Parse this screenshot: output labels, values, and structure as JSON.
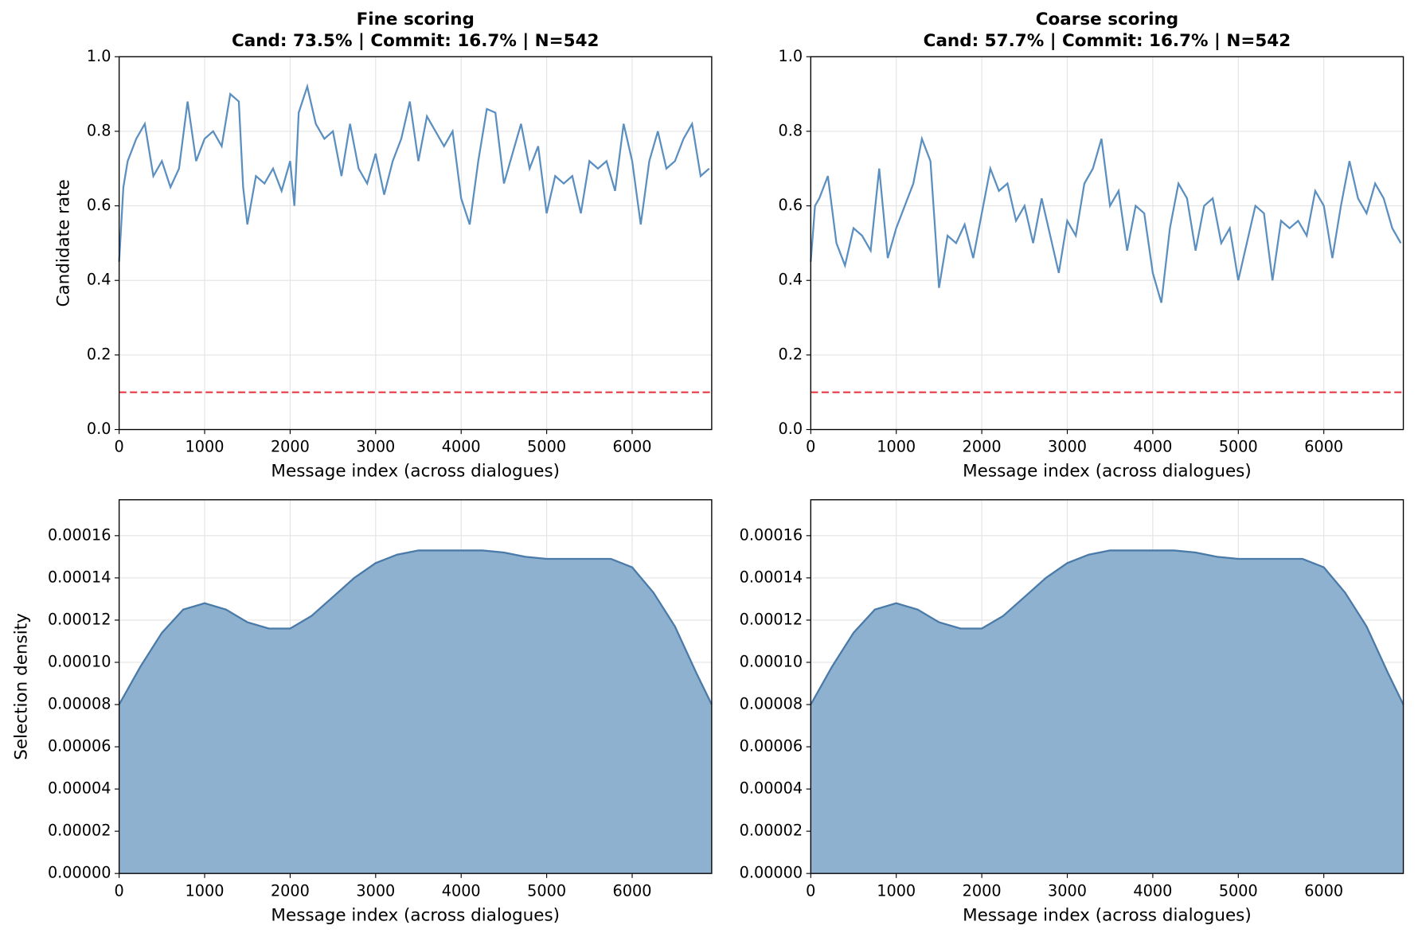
{
  "chart_data": [
    {
      "type": "line",
      "title": "Fine scoring",
      "subtitle": "Cand: 73.5% | Commit: 16.7% | N=542",
      "xlabel": "Message index (across dialogues)",
      "ylabel": "Candidate rate",
      "x": [
        0,
        50,
        100,
        200,
        300,
        400,
        500,
        600,
        700,
        800,
        900,
        1000,
        1100,
        1200,
        1300,
        1400,
        1450,
        1500,
        1600,
        1700,
        1800,
        1900,
        2000,
        2050,
        2100,
        2200,
        2300,
        2400,
        2500,
        2600,
        2700,
        2800,
        2900,
        3000,
        3100,
        3200,
        3300,
        3400,
        3500,
        3600,
        3700,
        3800,
        3900,
        4000,
        4100,
        4200,
        4300,
        4400,
        4500,
        4600,
        4700,
        4800,
        4900,
        5000,
        5100,
        5200,
        5300,
        5400,
        5500,
        5600,
        5700,
        5800,
        5900,
        6000,
        6100,
        6200,
        6300,
        6400,
        6500,
        6600,
        6700,
        6800,
        6900
      ],
      "values": [
        0.45,
        0.65,
        0.72,
        0.78,
        0.82,
        0.68,
        0.72,
        0.65,
        0.7,
        0.88,
        0.72,
        0.78,
        0.8,
        0.76,
        0.9,
        0.88,
        0.65,
        0.55,
        0.68,
        0.66,
        0.7,
        0.64,
        0.72,
        0.6,
        0.85,
        0.92,
        0.82,
        0.78,
        0.8,
        0.68,
        0.82,
        0.7,
        0.66,
        0.74,
        0.63,
        0.72,
        0.78,
        0.88,
        0.72,
        0.84,
        0.8,
        0.76,
        0.8,
        0.62,
        0.55,
        0.72,
        0.86,
        0.85,
        0.66,
        0.74,
        0.82,
        0.7,
        0.76,
        0.58,
        0.68,
        0.66,
        0.68,
        0.58,
        0.72,
        0.7,
        0.72,
        0.64,
        0.82,
        0.72,
        0.55,
        0.72,
        0.8,
        0.7,
        0.72,
        0.78,
        0.82,
        0.68,
        0.7
      ],
      "color": "#5b8fc0",
      "hlines": [
        {
          "value": 0.1,
          "color": "#e8434f",
          "style": "dashed"
        }
      ],
      "xlim": [
        0,
        6930
      ],
      "xticks": [
        0,
        1000,
        2000,
        3000,
        4000,
        5000,
        6000
      ],
      "ylim": [
        0,
        1
      ],
      "yticks": [
        {
          "value": 0,
          "label": "0.0"
        },
        0.2,
        0.4,
        0.6,
        0.8,
        {
          "value": 1,
          "label": "1.0"
        }
      ],
      "grid": true
    },
    {
      "type": "line",
      "title": "Coarse scoring",
      "subtitle": "Cand: 57.7% | Commit: 16.7% | N=542",
      "xlabel": "Message index (across dialogues)",
      "x": [
        0,
        50,
        100,
        200,
        300,
        400,
        500,
        600,
        700,
        800,
        900,
        1000,
        1100,
        1200,
        1300,
        1400,
        1450,
        1500,
        1600,
        1700,
        1800,
        1900,
        2000,
        2100,
        2200,
        2300,
        2400,
        2500,
        2600,
        2700,
        2800,
        2900,
        3000,
        3100,
        3200,
        3300,
        3400,
        3500,
        3600,
        3700,
        3800,
        3900,
        4000,
        4100,
        4200,
        4300,
        4400,
        4500,
        4600,
        4700,
        4800,
        4900,
        5000,
        5100,
        5200,
        5300,
        5400,
        5500,
        5600,
        5700,
        5800,
        5900,
        6000,
        6100,
        6200,
        6300,
        6400,
        6500,
        6600,
        6700,
        6800,
        6900
      ],
      "values": [
        0.45,
        0.6,
        0.62,
        0.68,
        0.5,
        0.44,
        0.54,
        0.52,
        0.48,
        0.7,
        0.46,
        0.54,
        0.6,
        0.66,
        0.78,
        0.72,
        0.55,
        0.38,
        0.52,
        0.5,
        0.55,
        0.46,
        0.58,
        0.7,
        0.64,
        0.66,
        0.56,
        0.6,
        0.5,
        0.62,
        0.52,
        0.42,
        0.56,
        0.52,
        0.66,
        0.7,
        0.78,
        0.6,
        0.64,
        0.48,
        0.6,
        0.58,
        0.42,
        0.34,
        0.54,
        0.66,
        0.62,
        0.48,
        0.6,
        0.62,
        0.5,
        0.54,
        0.4,
        0.5,
        0.6,
        0.58,
        0.4,
        0.56,
        0.54,
        0.56,
        0.52,
        0.64,
        0.6,
        0.46,
        0.6,
        0.72,
        0.62,
        0.58,
        0.66,
        0.62,
        0.54,
        0.5
      ],
      "color": "#5b8fc0",
      "hlines": [
        {
          "value": 0.1,
          "color": "#e8434f",
          "style": "dashed"
        }
      ],
      "xlim": [
        0,
        6930
      ],
      "xticks": [
        0,
        1000,
        2000,
        3000,
        4000,
        5000,
        6000
      ],
      "ylim": [
        0,
        1
      ],
      "yticks": [
        {
          "value": 0,
          "label": "0.0"
        },
        0.2,
        0.4,
        0.6,
        0.8,
        {
          "value": 1,
          "label": "1.0"
        }
      ],
      "grid": true
    },
    {
      "type": "area",
      "xlabel": "Message index (across dialogues)",
      "ylabel": "Selection density",
      "x": [
        0,
        250,
        500,
        750,
        1000,
        1250,
        1500,
        1750,
        2000,
        2250,
        2500,
        2750,
        3000,
        3250,
        3500,
        3750,
        4000,
        4250,
        4500,
        4750,
        5000,
        5250,
        5500,
        5750,
        6000,
        6250,
        6500,
        6750,
        6930
      ],
      "values": [
        8e-05,
        9.8e-05,
        0.000114,
        0.000125,
        0.000128,
        0.000125,
        0.000119,
        0.000116,
        0.000116,
        0.000122,
        0.000131,
        0.00014,
        0.000147,
        0.000151,
        0.000153,
        0.000153,
        0.000153,
        0.000153,
        0.000152,
        0.00015,
        0.000149,
        0.000149,
        0.000149,
        0.000149,
        0.000145,
        0.000133,
        0.000117,
        9.5e-05,
        8e-05
      ],
      "color": "#8eb1d0",
      "line_color": "#4a7aa8",
      "xlim": [
        0,
        6930
      ],
      "xticks": [
        0,
        1000,
        2000,
        3000,
        4000,
        5000,
        6000
      ],
      "ylim": [
        0,
        0.000177
      ],
      "yticks": [
        {
          "value": 0,
          "label": "0.00000"
        },
        2e-05,
        4e-05,
        6e-05,
        8e-05,
        {
          "value": 0.0001,
          "label": "0.00010"
        },
        0.00012,
        0.00014,
        0.00016
      ],
      "grid": true
    },
    {
      "type": "area",
      "xlabel": "Message index (across dialogues)",
      "x": [
        0,
        250,
        500,
        750,
        1000,
        1250,
        1500,
        1750,
        2000,
        2250,
        2500,
        2750,
        3000,
        3250,
        3500,
        3750,
        4000,
        4250,
        4500,
        4750,
        5000,
        5250,
        5500,
        5750,
        6000,
        6250,
        6500,
        6750,
        6930
      ],
      "values": [
        8e-05,
        9.8e-05,
        0.000114,
        0.000125,
        0.000128,
        0.000125,
        0.000119,
        0.000116,
        0.000116,
        0.000122,
        0.000131,
        0.00014,
        0.000147,
        0.000151,
        0.000153,
        0.000153,
        0.000153,
        0.000153,
        0.000152,
        0.00015,
        0.000149,
        0.000149,
        0.000149,
        0.000149,
        0.000145,
        0.000133,
        0.000117,
        9.5e-05,
        8e-05
      ],
      "color": "#8eb1d0",
      "line_color": "#4a7aa8",
      "xlim": [
        0,
        6930
      ],
      "xticks": [
        0,
        1000,
        2000,
        3000,
        4000,
        5000,
        6000
      ],
      "ylim": [
        0,
        0.000177
      ],
      "yticks": [
        {
          "value": 0,
          "label": "0.00000"
        },
        2e-05,
        4e-05,
        6e-05,
        8e-05,
        {
          "value": 0.0001,
          "label": "0.00010"
        },
        0.00012,
        0.00014,
        0.00016
      ],
      "grid": true
    }
  ]
}
